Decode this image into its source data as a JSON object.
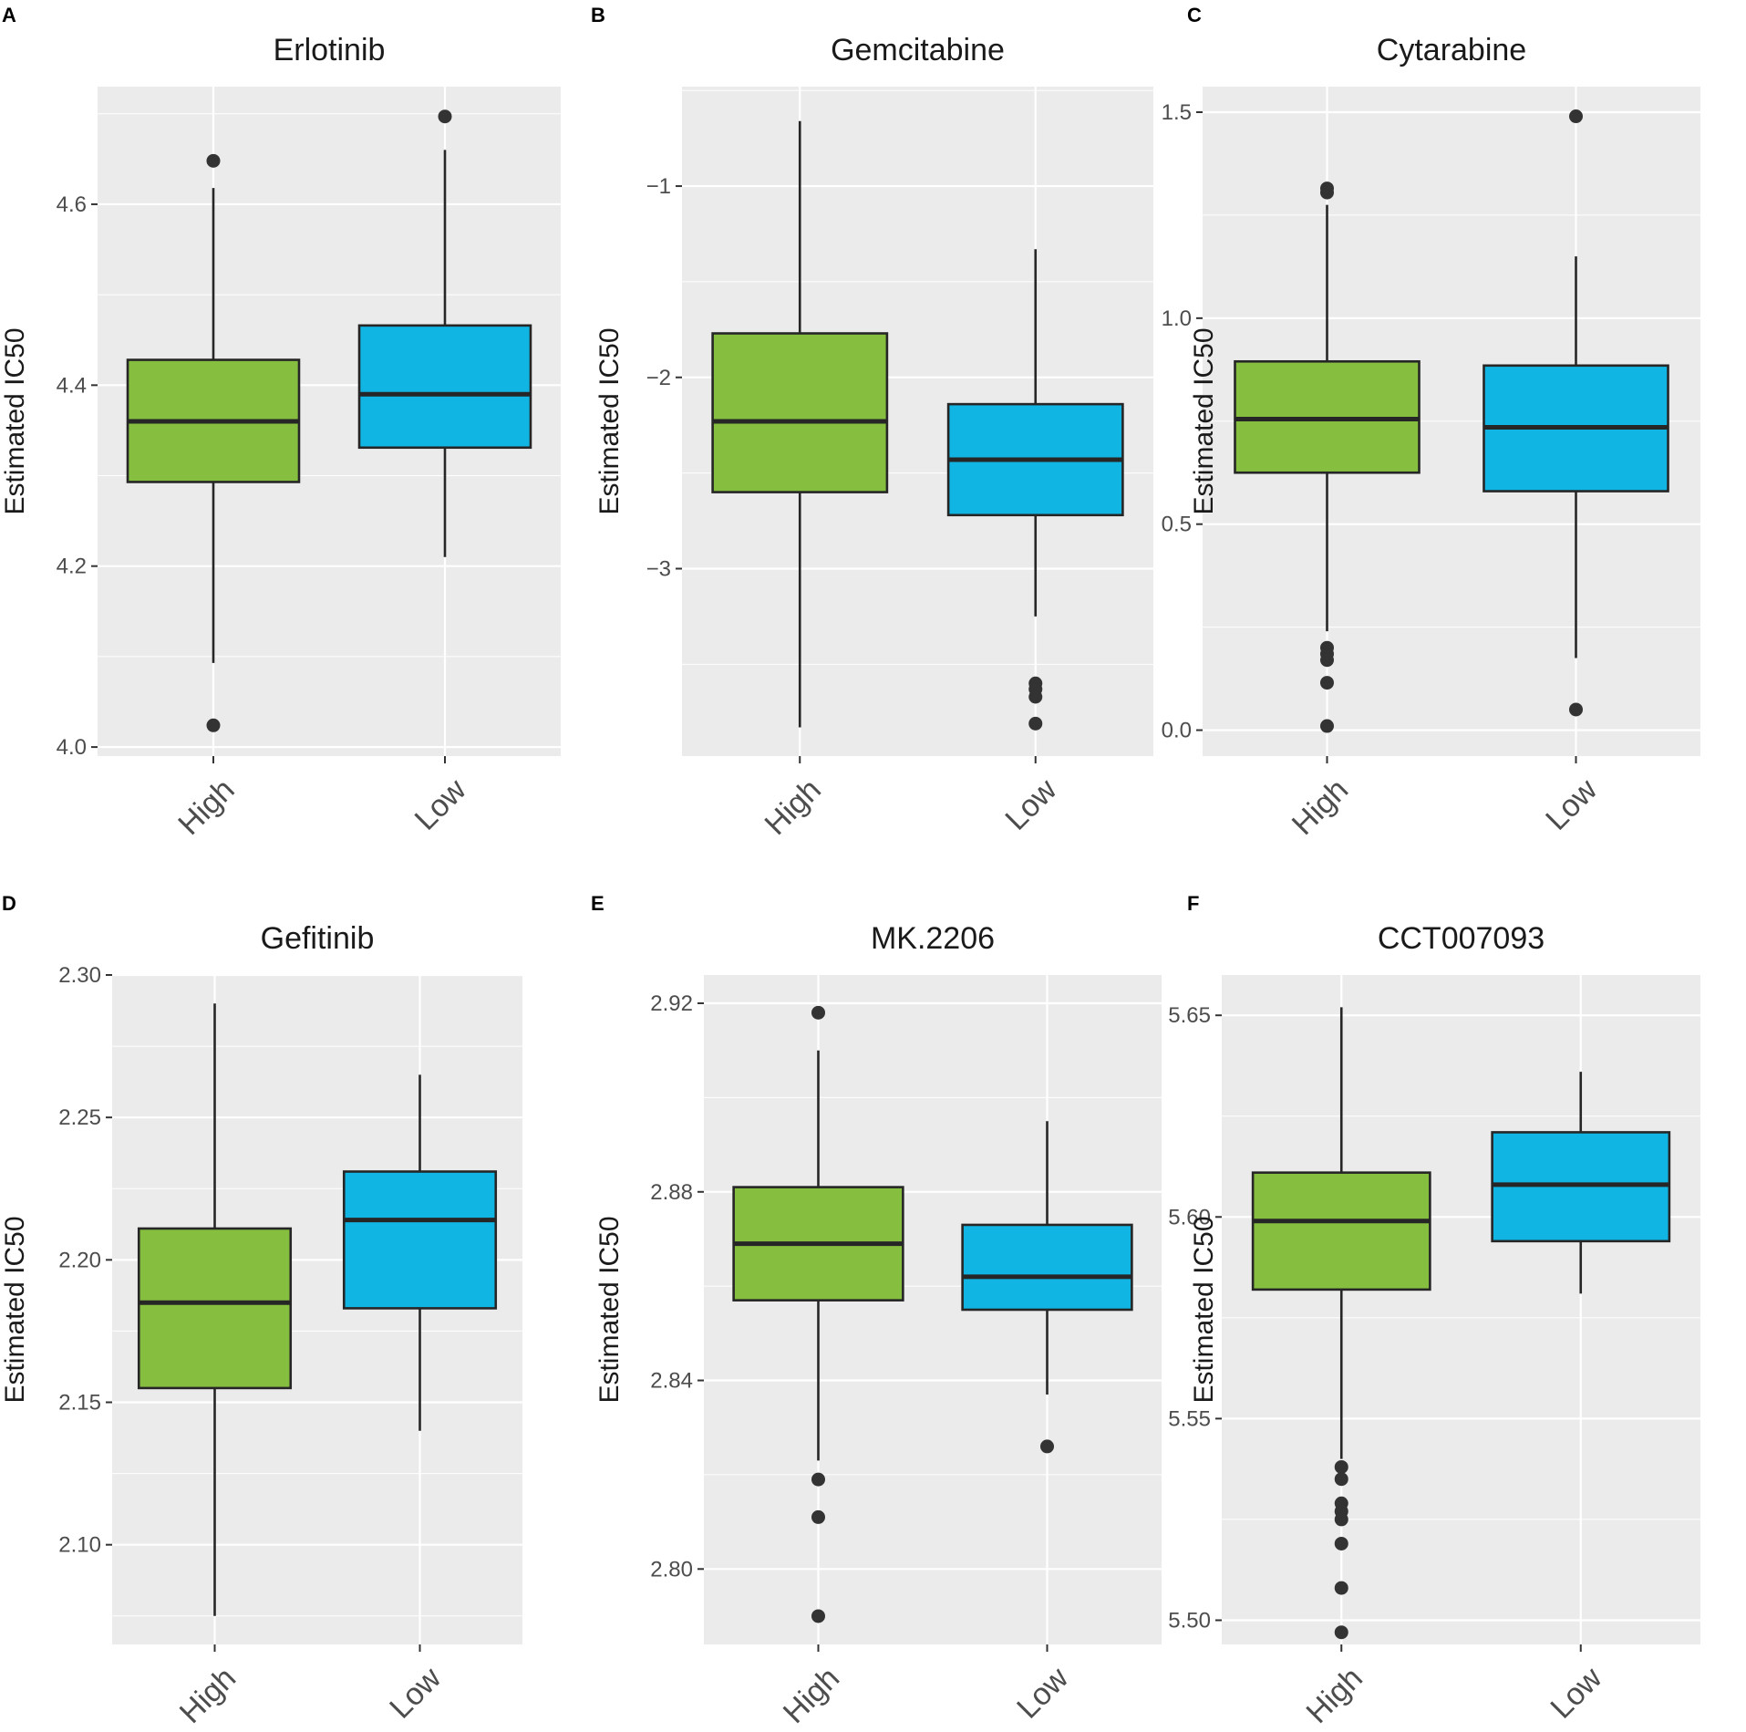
{
  "figure": {
    "y_axis_title": "Estimated IC50",
    "group_colors": {
      "High": "#86bf40",
      "Low": "#11b5e3"
    },
    "panel_bg": "#ebebeb",
    "grid_color": "#ffffff",
    "outline_color": "#262626"
  },
  "chart_data": [
    {
      "type": "box",
      "panel": "A",
      "title": "Erlotinib",
      "ylabel": "Estimated IC50",
      "categories": [
        "High",
        "Low"
      ],
      "ylim": [
        3.99,
        4.73
      ],
      "yticks": [
        4.0,
        4.2,
        4.4,
        4.6
      ],
      "ytick_labels": [
        "4.0",
        "4.2",
        "4.4",
        "4.6"
      ],
      "minor_ticks": [
        4.1,
        4.3,
        4.5,
        4.7
      ],
      "boxes": [
        {
          "name": "High",
          "q1": 4.293,
          "median": 4.36,
          "q3": 4.428,
          "whisker_low": 4.093,
          "whisker_high": 4.618,
          "outliers": [
            4.648,
            4.024
          ]
        },
        {
          "name": "Low",
          "q1": 4.331,
          "median": 4.39,
          "q3": 4.466,
          "whisker_low": 4.21,
          "whisker_high": 4.66,
          "outliers": [
            4.697
          ]
        }
      ]
    },
    {
      "type": "box",
      "panel": "B",
      "title": "Gemcitabine",
      "ylabel": "Estimated IC50",
      "categories": [
        "High",
        "Low"
      ],
      "ylim": [
        -3.98,
        -0.48
      ],
      "yticks": [
        -3,
        -2,
        -1
      ],
      "ytick_labels": [
        "−3",
        "−2",
        "−1"
      ],
      "minor_ticks": [
        -3.5,
        -2.5,
        -1.5,
        -0.5
      ],
      "boxes": [
        {
          "name": "High",
          "q1": -2.6,
          "median": -2.23,
          "q3": -1.77,
          "whisker_low": -3.83,
          "whisker_high": -0.66,
          "outliers": []
        },
        {
          "name": "Low",
          "q1": -2.72,
          "median": -2.43,
          "q3": -2.14,
          "whisker_low": -3.25,
          "whisker_high": -1.33,
          "outliers": [
            -3.6,
            -3.63,
            -3.67,
            -3.81
          ]
        }
      ]
    },
    {
      "type": "box",
      "panel": "C",
      "title": "Cytarabine",
      "ylabel": "Estimated IC50",
      "categories": [
        "High",
        "Low"
      ],
      "ylim": [
        -0.063,
        1.562
      ],
      "yticks": [
        0.0,
        0.5,
        1.0,
        1.5
      ],
      "ytick_labels": [
        "0.0",
        "0.5",
        "1.0",
        "1.5"
      ],
      "minor_ticks": [
        0.25,
        0.75,
        1.25
      ],
      "boxes": [
        {
          "name": "High",
          "q1": 0.625,
          "median": 0.755,
          "q3": 0.895,
          "whisker_low": 0.24,
          "whisker_high": 1.275,
          "outliers": [
            1.315,
            1.305,
            0.2,
            0.185,
            0.17,
            0.115,
            0.01
          ]
        },
        {
          "name": "Low",
          "q1": 0.58,
          "median": 0.735,
          "q3": 0.885,
          "whisker_low": 0.175,
          "whisker_high": 1.15,
          "outliers": [
            1.49,
            0.05
          ]
        }
      ]
    },
    {
      "type": "box",
      "panel": "D",
      "title": "Gefitinib",
      "ylabel": "Estimated IC50",
      "categories": [
        "High",
        "Low"
      ],
      "ylim": [
        2.065,
        2.3
      ],
      "yticks": [
        2.1,
        2.15,
        2.2,
        2.25,
        2.3
      ],
      "ytick_labels": [
        "2.10",
        "2.15",
        "2.20",
        "2.25",
        "2.30"
      ],
      "minor_ticks": [
        2.075,
        2.125,
        2.175,
        2.225,
        2.275
      ],
      "boxes": [
        {
          "name": "High",
          "q1": 2.155,
          "median": 2.185,
          "q3": 2.211,
          "whisker_low": 2.075,
          "whisker_high": 2.29,
          "outliers": []
        },
        {
          "name": "Low",
          "q1": 2.183,
          "median": 2.214,
          "q3": 2.231,
          "whisker_low": 2.14,
          "whisker_high": 2.265,
          "outliers": []
        }
      ]
    },
    {
      "type": "box",
      "panel": "E",
      "title": "MK.2206",
      "ylabel": "Estimated IC50",
      "categories": [
        "High",
        "Low"
      ],
      "ylim": [
        2.784,
        2.926
      ],
      "yticks": [
        2.8,
        2.84,
        2.88,
        2.92
      ],
      "ytick_labels": [
        "2.80",
        "2.84",
        "2.88",
        "2.92"
      ],
      "minor_ticks": [
        2.78,
        2.82,
        2.86,
        2.9
      ],
      "boxes": [
        {
          "name": "High",
          "q1": 2.857,
          "median": 2.869,
          "q3": 2.881,
          "whisker_low": 2.823,
          "whisker_high": 2.91,
          "outliers": [
            2.918,
            2.819,
            2.811,
            2.79
          ]
        },
        {
          "name": "Low",
          "q1": 2.855,
          "median": 2.862,
          "q3": 2.873,
          "whisker_low": 2.837,
          "whisker_high": 2.895,
          "outliers": [
            2.826
          ]
        }
      ]
    },
    {
      "type": "box",
      "panel": "F",
      "title": "CCT007093",
      "ylabel": "Estimated IC50",
      "categories": [
        "High",
        "Low"
      ],
      "ylim": [
        5.494,
        5.66
      ],
      "yticks": [
        5.5,
        5.55,
        5.6,
        5.65
      ],
      "ytick_labels": [
        "5.50",
        "5.55",
        "5.60",
        "5.65"
      ],
      "minor_ticks": [
        5.525,
        5.575,
        5.625
      ],
      "boxes": [
        {
          "name": "High",
          "q1": 5.582,
          "median": 5.599,
          "q3": 5.611,
          "whisker_low": 5.54,
          "whisker_high": 5.652,
          "outliers": [
            5.538,
            5.535,
            5.529,
            5.527,
            5.525,
            5.519,
            5.508,
            5.497
          ]
        },
        {
          "name": "Low",
          "q1": 5.594,
          "median": 5.608,
          "q3": 5.621,
          "whisker_low": 5.581,
          "whisker_high": 5.636,
          "outliers": []
        }
      ]
    }
  ]
}
